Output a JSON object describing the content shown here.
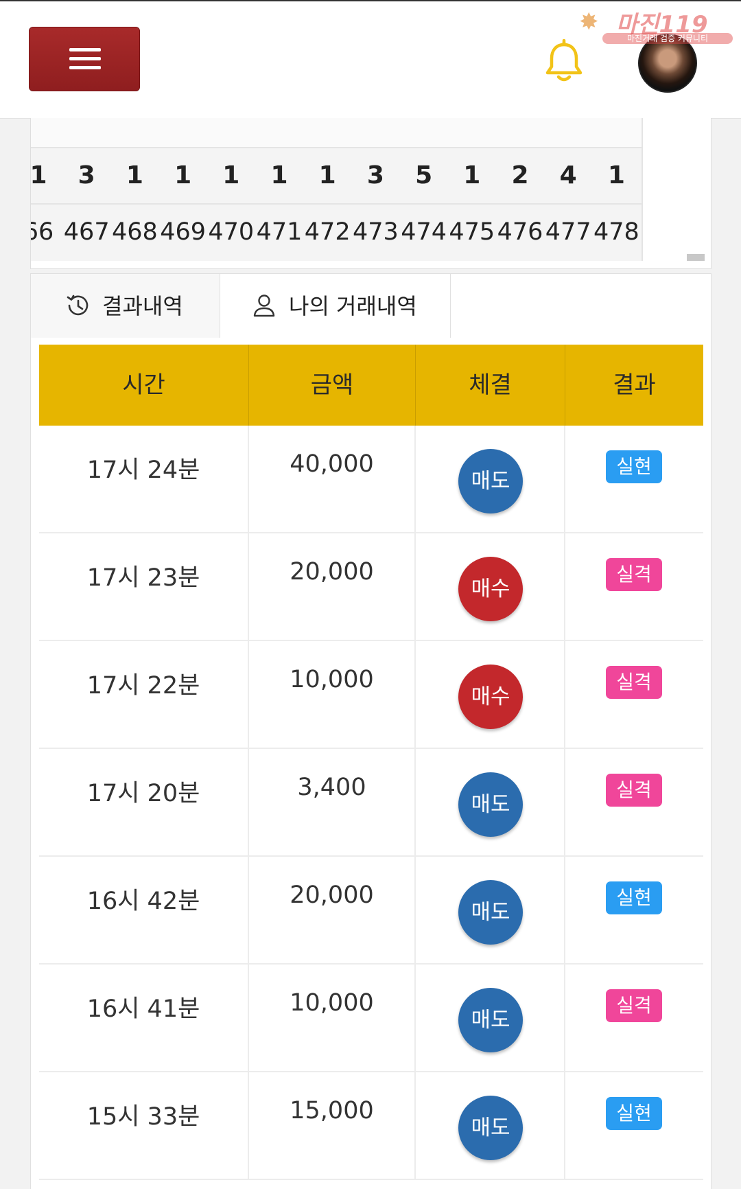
{
  "header": {
    "menu_icon": "hamburger-icon",
    "bell_icon": "bell-icon",
    "bell_color": "#f2c318",
    "avatar_alt": "avatar",
    "watermark": {
      "title": "마진119",
      "subtitle": "마진거래 검증 커뮤니티"
    }
  },
  "results_grid": {
    "columns": [
      {
        "count": "1",
        "round": "66"
      },
      {
        "count": "3",
        "round": "467"
      },
      {
        "count": "1",
        "round": "468"
      },
      {
        "count": "1",
        "round": "469"
      },
      {
        "count": "1",
        "round": "470"
      },
      {
        "count": "1",
        "round": "471"
      },
      {
        "count": "1",
        "round": "472"
      },
      {
        "count": "3",
        "round": "473"
      },
      {
        "count": "5",
        "round": "474"
      },
      {
        "count": "1",
        "round": "475"
      },
      {
        "count": "2",
        "round": "476"
      },
      {
        "count": "4",
        "round": "477"
      },
      {
        "count": "1",
        "round": "478"
      }
    ]
  },
  "tabs": [
    {
      "label": "결과내역",
      "icon": "history-icon",
      "active": false
    },
    {
      "label": "나의 거래내역",
      "icon": "user-icon",
      "active": true
    }
  ],
  "table": {
    "headers": [
      "시간",
      "금액",
      "체결",
      "결과"
    ],
    "header_color": "#e6b500",
    "rows": [
      {
        "time": "17시 24분",
        "amount": "40,000",
        "trade": "매도",
        "result": "실현"
      },
      {
        "time": "17시 23분",
        "amount": "20,000",
        "trade": "매수",
        "result": "실격"
      },
      {
        "time": "17시 22분",
        "amount": "10,000",
        "trade": "매수",
        "result": "실격"
      },
      {
        "time": "17시 20분",
        "amount": "3,400",
        "trade": "매도",
        "result": "실격"
      },
      {
        "time": "16시 42분",
        "amount": "20,000",
        "trade": "매도",
        "result": "실현"
      },
      {
        "time": "16시 41분",
        "amount": "10,000",
        "trade": "매도",
        "result": "실격"
      },
      {
        "time": "15시 33분",
        "amount": "15,000",
        "trade": "매도",
        "result": "실현"
      }
    ]
  },
  "colors": {
    "sell": "#2b6cae",
    "buy": "#c3282c",
    "win": "#2a9df2",
    "lose": "#f0469a",
    "menu": "#a82a2a"
  }
}
